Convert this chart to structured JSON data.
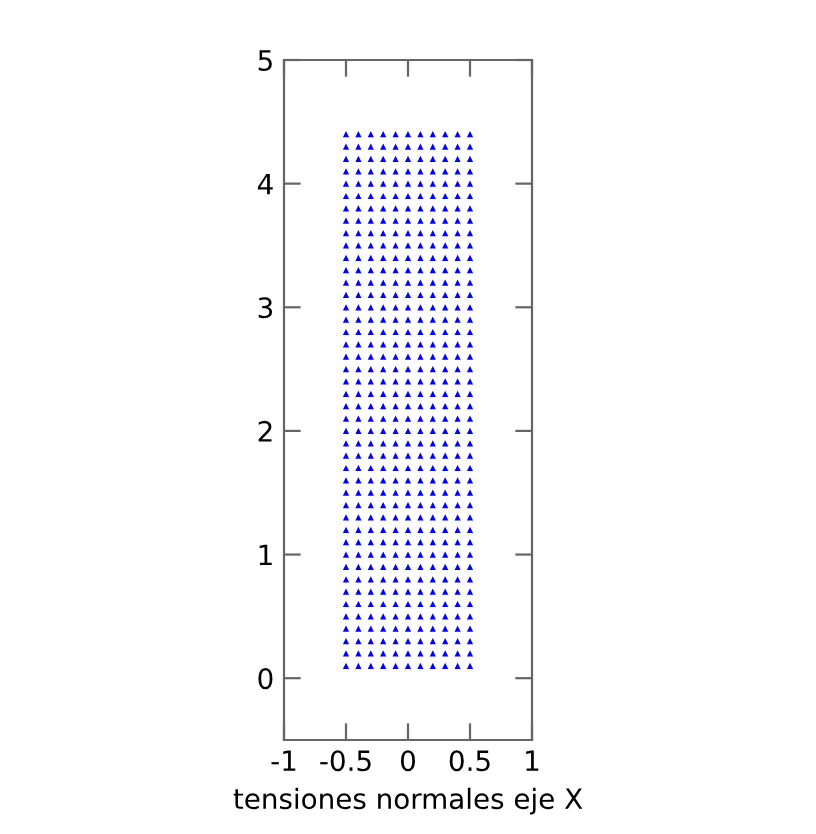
{
  "chart_data": {
    "type": "scatter",
    "xlabel": "tensiones normales eje X",
    "xlim": [
      -1,
      1
    ],
    "xticks": [
      -1,
      -0.5,
      0,
      0.5,
      1
    ],
    "ylim": [
      -0.5,
      5
    ],
    "yticks": [
      0,
      1,
      2,
      3,
      4,
      5
    ],
    "marker": "triangle",
    "series": [
      {
        "color": "#0000ff",
        "x": [
          -0.5,
          -0.5,
          -0.5,
          -0.5,
          -0.5,
          -0.5,
          -0.5,
          -0.5,
          -0.5,
          -0.5,
          -0.5,
          -0.5,
          -0.5,
          -0.5,
          -0.5,
          -0.5,
          -0.5,
          -0.5,
          -0.5,
          -0.5,
          -0.5,
          -0.5,
          -0.5,
          -0.5,
          -0.5,
          -0.5,
          -0.5,
          -0.5,
          -0.5,
          -0.5,
          -0.5,
          -0.5,
          -0.5,
          -0.5,
          -0.5,
          -0.5,
          -0.5,
          -0.5,
          -0.5,
          -0.5,
          -0.5,
          -0.5,
          -0.5,
          -0.5
        ],
        "values": [
          0.1,
          0.2,
          0.3,
          0.4,
          0.5,
          0.6,
          0.7,
          0.8,
          0.9,
          1.0,
          1.1,
          1.2,
          1.3,
          1.4,
          1.5,
          1.6,
          1.7,
          1.8,
          1.9,
          2.0,
          2.1,
          2.2,
          2.3,
          2.4,
          2.5,
          2.6,
          2.7,
          2.8,
          2.9,
          3.0,
          3.1,
          3.2,
          3.3,
          3.4,
          3.5,
          3.6,
          3.7,
          3.8,
          3.9,
          4.0,
          4.1,
          4.2,
          4.3,
          4.4
        ]
      },
      {
        "color": "#0000ff",
        "x": [
          -0.4,
          -0.4,
          -0.4,
          -0.4,
          -0.4,
          -0.4,
          -0.4,
          -0.4,
          -0.4,
          -0.4,
          -0.4,
          -0.4,
          -0.4,
          -0.4,
          -0.4,
          -0.4,
          -0.4,
          -0.4,
          -0.4,
          -0.4,
          -0.4,
          -0.4,
          -0.4,
          -0.4,
          -0.4,
          -0.4,
          -0.4,
          -0.4,
          -0.4,
          -0.4,
          -0.4,
          -0.4,
          -0.4,
          -0.4,
          -0.4,
          -0.4,
          -0.4,
          -0.4,
          -0.4,
          -0.4,
          -0.4,
          -0.4,
          -0.4,
          -0.4
        ],
        "values": [
          0.1,
          0.2,
          0.3,
          0.4,
          0.5,
          0.6,
          0.7,
          0.8,
          0.9,
          1.0,
          1.1,
          1.2,
          1.3,
          1.4,
          1.5,
          1.6,
          1.7,
          1.8,
          1.9,
          2.0,
          2.1,
          2.2,
          2.3,
          2.4,
          2.5,
          2.6,
          2.7,
          2.8,
          2.9,
          3.0,
          3.1,
          3.2,
          3.3,
          3.4,
          3.5,
          3.6,
          3.7,
          3.8,
          3.9,
          4.0,
          4.1,
          4.2,
          4.3,
          4.4
        ]
      },
      {
        "color": "#0000ff",
        "x": [
          -0.3,
          -0.3,
          -0.3,
          -0.3,
          -0.3,
          -0.3,
          -0.3,
          -0.3,
          -0.3,
          -0.3,
          -0.3,
          -0.3,
          -0.3,
          -0.3,
          -0.3,
          -0.3,
          -0.3,
          -0.3,
          -0.3,
          -0.3,
          -0.3,
          -0.3,
          -0.3,
          -0.3,
          -0.3,
          -0.3,
          -0.3,
          -0.3,
          -0.3,
          -0.3,
          -0.3,
          -0.3,
          -0.3,
          -0.3,
          -0.3,
          -0.3,
          -0.3,
          -0.3,
          -0.3,
          -0.3,
          -0.3,
          -0.3,
          -0.3,
          -0.3
        ],
        "values": [
          0.1,
          0.2,
          0.3,
          0.4,
          0.5,
          0.6,
          0.7,
          0.8,
          0.9,
          1.0,
          1.1,
          1.2,
          1.3,
          1.4,
          1.5,
          1.6,
          1.7,
          1.8,
          1.9,
          2.0,
          2.1,
          2.2,
          2.3,
          2.4,
          2.5,
          2.6,
          2.7,
          2.8,
          2.9,
          3.0,
          3.1,
          3.2,
          3.3,
          3.4,
          3.5,
          3.6,
          3.7,
          3.8,
          3.9,
          4.0,
          4.1,
          4.2,
          4.3,
          4.4
        ]
      },
      {
        "color": "#0000ff",
        "x": [
          -0.2,
          -0.2,
          -0.2,
          -0.2,
          -0.2,
          -0.2,
          -0.2,
          -0.2,
          -0.2,
          -0.2,
          -0.2,
          -0.2,
          -0.2,
          -0.2,
          -0.2,
          -0.2,
          -0.2,
          -0.2,
          -0.2,
          -0.2,
          -0.2,
          -0.2,
          -0.2,
          -0.2,
          -0.2,
          -0.2,
          -0.2,
          -0.2,
          -0.2,
          -0.2,
          -0.2,
          -0.2,
          -0.2,
          -0.2,
          -0.2,
          -0.2,
          -0.2,
          -0.2,
          -0.2,
          -0.2,
          -0.2,
          -0.2,
          -0.2,
          -0.2
        ],
        "values": [
          0.1,
          0.2,
          0.3,
          0.4,
          0.5,
          0.6,
          0.7,
          0.8,
          0.9,
          1.0,
          1.1,
          1.2,
          1.3,
          1.4,
          1.5,
          1.6,
          1.7,
          1.8,
          1.9,
          2.0,
          2.1,
          2.2,
          2.3,
          2.4,
          2.5,
          2.6,
          2.7,
          2.8,
          2.9,
          3.0,
          3.1,
          3.2,
          3.3,
          3.4,
          3.5,
          3.6,
          3.7,
          3.8,
          3.9,
          4.0,
          4.1,
          4.2,
          4.3,
          4.4
        ]
      },
      {
        "color": "#0000ff",
        "x": [
          -0.1,
          -0.1,
          -0.1,
          -0.1,
          -0.1,
          -0.1,
          -0.1,
          -0.1,
          -0.1,
          -0.1,
          -0.1,
          -0.1,
          -0.1,
          -0.1,
          -0.1,
          -0.1,
          -0.1,
          -0.1,
          -0.1,
          -0.1,
          -0.1,
          -0.1,
          -0.1,
          -0.1,
          -0.1,
          -0.1,
          -0.1,
          -0.1,
          -0.1,
          -0.1,
          -0.1,
          -0.1,
          -0.1,
          -0.1,
          -0.1,
          -0.1,
          -0.1,
          -0.1,
          -0.1,
          -0.1,
          -0.1,
          -0.1,
          -0.1,
          -0.1
        ],
        "values": [
          0.1,
          0.2,
          0.3,
          0.4,
          0.5,
          0.6,
          0.7,
          0.8,
          0.9,
          1.0,
          1.1,
          1.2,
          1.3,
          1.4,
          1.5,
          1.6,
          1.7,
          1.8,
          1.9,
          2.0,
          2.1,
          2.2,
          2.3,
          2.4,
          2.5,
          2.6,
          2.7,
          2.8,
          2.9,
          3.0,
          3.1,
          3.2,
          3.3,
          3.4,
          3.5,
          3.6,
          3.7,
          3.8,
          3.9,
          4.0,
          4.1,
          4.2,
          4.3,
          4.4
        ]
      },
      {
        "color": "#0000ff",
        "x": [
          0,
          0,
          0,
          0,
          0,
          0,
          0,
          0,
          0,
          0,
          0,
          0,
          0,
          0,
          0,
          0,
          0,
          0,
          0,
          0,
          0,
          0,
          0,
          0,
          0,
          0,
          0,
          0,
          0,
          0,
          0,
          0,
          0,
          0,
          0,
          0,
          0,
          0,
          0,
          0,
          0,
          0,
          0,
          0
        ],
        "values": [
          0.1,
          0.2,
          0.3,
          0.4,
          0.5,
          0.6,
          0.7,
          0.8,
          0.9,
          1.0,
          1.1,
          1.2,
          1.3,
          1.4,
          1.5,
          1.6,
          1.7,
          1.8,
          1.9,
          2.0,
          2.1,
          2.2,
          2.3,
          2.4,
          2.5,
          2.6,
          2.7,
          2.8,
          2.9,
          3.0,
          3.1,
          3.2,
          3.3,
          3.4,
          3.5,
          3.6,
          3.7,
          3.8,
          3.9,
          4.0,
          4.1,
          4.2,
          4.3,
          4.4
        ]
      },
      {
        "color": "#0000ff",
        "x": [
          0.1,
          0.1,
          0.1,
          0.1,
          0.1,
          0.1,
          0.1,
          0.1,
          0.1,
          0.1,
          0.1,
          0.1,
          0.1,
          0.1,
          0.1,
          0.1,
          0.1,
          0.1,
          0.1,
          0.1,
          0.1,
          0.1,
          0.1,
          0.1,
          0.1,
          0.1,
          0.1,
          0.1,
          0.1,
          0.1,
          0.1,
          0.1,
          0.1,
          0.1,
          0.1,
          0.1,
          0.1,
          0.1,
          0.1,
          0.1,
          0.1,
          0.1,
          0.1,
          0.1
        ],
        "values": [
          0.1,
          0.2,
          0.3,
          0.4,
          0.5,
          0.6,
          0.7,
          0.8,
          0.9,
          1.0,
          1.1,
          1.2,
          1.3,
          1.4,
          1.5,
          1.6,
          1.7,
          1.8,
          1.9,
          2.0,
          2.1,
          2.2,
          2.3,
          2.4,
          2.5,
          2.6,
          2.7,
          2.8,
          2.9,
          3.0,
          3.1,
          3.2,
          3.3,
          3.4,
          3.5,
          3.6,
          3.7,
          3.8,
          3.9,
          4.0,
          4.1,
          4.2,
          4.3,
          4.4
        ]
      },
      {
        "color": "#0000ff",
        "x": [
          0.2,
          0.2,
          0.2,
          0.2,
          0.2,
          0.2,
          0.2,
          0.2,
          0.2,
          0.2,
          0.2,
          0.2,
          0.2,
          0.2,
          0.2,
          0.2,
          0.2,
          0.2,
          0.2,
          0.2,
          0.2,
          0.2,
          0.2,
          0.2,
          0.2,
          0.2,
          0.2,
          0.2,
          0.2,
          0.2,
          0.2,
          0.2,
          0.2,
          0.2,
          0.2,
          0.2,
          0.2,
          0.2,
          0.2,
          0.2,
          0.2,
          0.2,
          0.2,
          0.2
        ],
        "values": [
          0.1,
          0.2,
          0.3,
          0.4,
          0.5,
          0.6,
          0.7,
          0.8,
          0.9,
          1.0,
          1.1,
          1.2,
          1.3,
          1.4,
          1.5,
          1.6,
          1.7,
          1.8,
          1.9,
          2.0,
          2.1,
          2.2,
          2.3,
          2.4,
          2.5,
          2.6,
          2.7,
          2.8,
          2.9,
          3.0,
          3.1,
          3.2,
          3.3,
          3.4,
          3.5,
          3.6,
          3.7,
          3.8,
          3.9,
          4.0,
          4.1,
          4.2,
          4.3,
          4.4
        ]
      },
      {
        "color": "#0000ff",
        "x": [
          0.3,
          0.3,
          0.3,
          0.3,
          0.3,
          0.3,
          0.3,
          0.3,
          0.3,
          0.3,
          0.3,
          0.3,
          0.3,
          0.3,
          0.3,
          0.3,
          0.3,
          0.3,
          0.3,
          0.3,
          0.3,
          0.3,
          0.3,
          0.3,
          0.3,
          0.3,
          0.3,
          0.3,
          0.3,
          0.3,
          0.3,
          0.3,
          0.3,
          0.3,
          0.3,
          0.3,
          0.3,
          0.3,
          0.3,
          0.3,
          0.3,
          0.3,
          0.3,
          0.3
        ],
        "values": [
          0.1,
          0.2,
          0.3,
          0.4,
          0.5,
          0.6,
          0.7,
          0.8,
          0.9,
          1.0,
          1.1,
          1.2,
          1.3,
          1.4,
          1.5,
          1.6,
          1.7,
          1.8,
          1.9,
          2.0,
          2.1,
          2.2,
          2.3,
          2.4,
          2.5,
          2.6,
          2.7,
          2.8,
          2.9,
          3.0,
          3.1,
          3.2,
          3.3,
          3.4,
          3.5,
          3.6,
          3.7,
          3.8,
          3.9,
          4.0,
          4.1,
          4.2,
          4.3,
          4.4
        ]
      },
      {
        "color": "#0000ff",
        "x": [
          0.4,
          0.4,
          0.4,
          0.4,
          0.4,
          0.4,
          0.4,
          0.4,
          0.4,
          0.4,
          0.4,
          0.4,
          0.4,
          0.4,
          0.4,
          0.4,
          0.4,
          0.4,
          0.4,
          0.4,
          0.4,
          0.4,
          0.4,
          0.4,
          0.4,
          0.4,
          0.4,
          0.4,
          0.4,
          0.4,
          0.4,
          0.4,
          0.4,
          0.4,
          0.4,
          0.4,
          0.4,
          0.4,
          0.4,
          0.4,
          0.4,
          0.4,
          0.4,
          0.4
        ],
        "values": [
          0.1,
          0.2,
          0.3,
          0.4,
          0.5,
          0.6,
          0.7,
          0.8,
          0.9,
          1.0,
          1.1,
          1.2,
          1.3,
          1.4,
          1.5,
          1.6,
          1.7,
          1.8,
          1.9,
          2.0,
          2.1,
          2.2,
          2.3,
          2.4,
          2.5,
          2.6,
          2.7,
          2.8,
          2.9,
          3.0,
          3.1,
          3.2,
          3.3,
          3.4,
          3.5,
          3.6,
          3.7,
          3.8,
          3.9,
          4.0,
          4.1,
          4.2,
          4.3,
          4.4
        ]
      },
      {
        "color": "#0000ff",
        "x": [
          0.5,
          0.5,
          0.5,
          0.5,
          0.5,
          0.5,
          0.5,
          0.5,
          0.5,
          0.5,
          0.5,
          0.5,
          0.5,
          0.5,
          0.5,
          0.5,
          0.5,
          0.5,
          0.5,
          0.5,
          0.5,
          0.5,
          0.5,
          0.5,
          0.5,
          0.5,
          0.5,
          0.5,
          0.5,
          0.5,
          0.5,
          0.5,
          0.5,
          0.5,
          0.5,
          0.5,
          0.5,
          0.5,
          0.5,
          0.5,
          0.5,
          0.5,
          0.5,
          0.5
        ],
        "values": [
          0.1,
          0.2,
          0.3,
          0.4,
          0.5,
          0.6,
          0.7,
          0.8,
          0.9,
          1.0,
          1.1,
          1.2,
          1.3,
          1.4,
          1.5,
          1.6,
          1.7,
          1.8,
          1.9,
          2.0,
          2.1,
          2.2,
          2.3,
          2.4,
          2.5,
          2.6,
          2.7,
          2.8,
          2.9,
          3.0,
          3.1,
          3.2,
          3.3,
          3.4,
          3.5,
          3.6,
          3.7,
          3.8,
          3.9,
          4.0,
          4.1,
          4.2,
          4.3,
          4.4
        ]
      }
    ]
  }
}
